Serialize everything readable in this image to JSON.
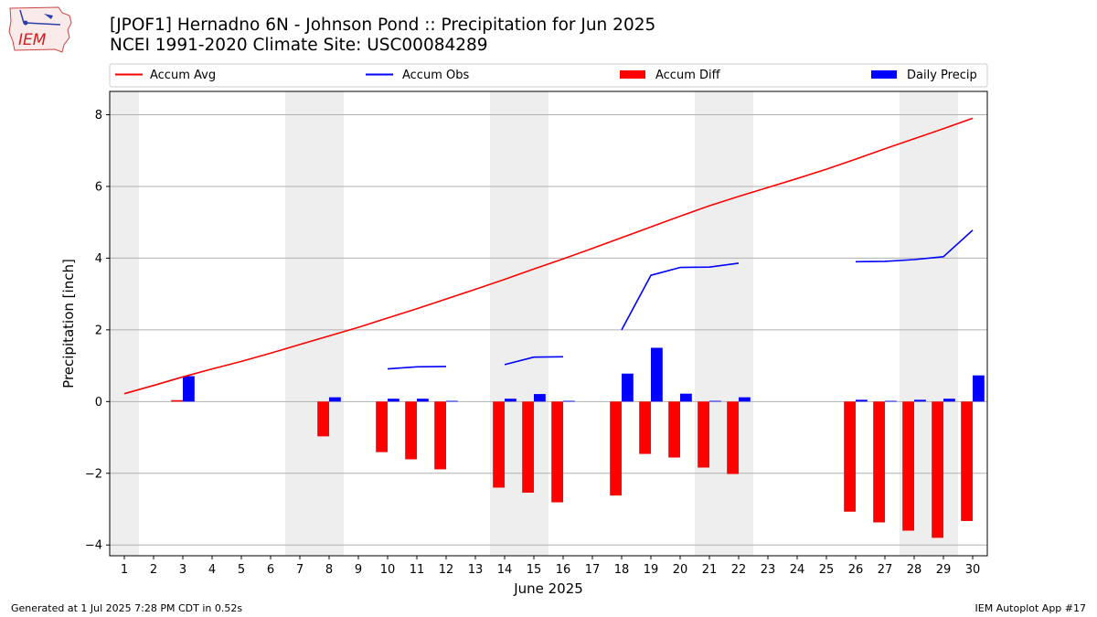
{
  "header": {
    "title_line1": "[JPOF1] Hernadno 6N - Johnson Pond :: Precipitation for Jun 2025",
    "title_line2": "NCEI 1991-2020 Climate Site: USC00084289",
    "logo_text": "IEM"
  },
  "footer": {
    "generated": "Generated at 1 Jul 2025 7:28 PM CDT in 0.52s",
    "app": "IEM Autoplot App #17"
  },
  "chart_data": {
    "type": "bar",
    "xlabel": "June 2025",
    "ylabel": "Precipitation [inch]",
    "xlim": [
      0.5,
      30.5
    ],
    "ylim": [
      -4.3,
      8.65
    ],
    "x_ticks": [
      1,
      2,
      3,
      4,
      5,
      6,
      7,
      8,
      9,
      10,
      11,
      12,
      13,
      14,
      15,
      16,
      17,
      18,
      19,
      20,
      21,
      22,
      23,
      24,
      25,
      26,
      27,
      28,
      29,
      30
    ],
    "y_ticks": [
      -4,
      -2,
      0,
      2,
      4,
      6,
      8
    ],
    "grid": "y",
    "legend_placement": "top",
    "weekend_shading": [
      [
        0.5,
        1.5
      ],
      [
        6.5,
        8.5
      ],
      [
        13.5,
        15.5
      ],
      [
        20.5,
        22.5
      ],
      [
        27.5,
        29.5
      ]
    ],
    "series": [
      {
        "name": "Accum Avg",
        "kind": "line",
        "color": "#ff0000",
        "x": [
          1,
          2,
          3,
          4,
          5,
          6,
          7,
          8,
          9,
          10,
          11,
          12,
          13,
          14,
          15,
          16,
          17,
          18,
          19,
          20,
          21,
          22,
          23,
          24,
          25,
          26,
          27,
          28,
          29,
          30
        ],
        "values": [
          0.22,
          0.45,
          0.69,
          0.91,
          1.12,
          1.35,
          1.59,
          1.83,
          2.07,
          2.33,
          2.59,
          2.86,
          3.13,
          3.41,
          3.7,
          3.98,
          4.27,
          4.57,
          4.87,
          5.17,
          5.46,
          5.72,
          5.97,
          6.22,
          6.48,
          6.76,
          7.05,
          7.33,
          7.61,
          7.9
        ]
      },
      {
        "name": "Accum Obs",
        "kind": "line",
        "color": "#0000ff",
        "x": [
          1,
          2,
          3,
          4,
          5,
          6,
          7,
          8,
          9,
          10,
          11,
          12,
          13,
          14,
          15,
          16,
          17,
          18,
          19,
          20,
          21,
          22,
          23,
          24,
          25,
          26,
          27,
          28,
          29,
          30
        ],
        "values": [
          null,
          null,
          null,
          null,
          null,
          null,
          null,
          null,
          null,
          0.91,
          0.97,
          0.98,
          null,
          1.03,
          1.24,
          1.25,
          null,
          2.0,
          3.52,
          3.74,
          3.75,
          3.86,
          null,
          null,
          null,
          3.9,
          3.91,
          3.96,
          4.04,
          4.78
        ]
      },
      {
        "name": "Accum Diff",
        "kind": "bar",
        "color": "#ff0000",
        "x": [
          1,
          2,
          3,
          4,
          5,
          6,
          7,
          8,
          9,
          10,
          11,
          12,
          13,
          14,
          15,
          16,
          17,
          18,
          19,
          20,
          21,
          22,
          23,
          24,
          25,
          26,
          27,
          28,
          29,
          30
        ],
        "values": [
          null,
          null,
          0.04,
          null,
          null,
          null,
          null,
          -0.97,
          null,
          -1.41,
          -1.61,
          -1.89,
          null,
          -2.4,
          -2.54,
          -2.81,
          null,
          -2.62,
          -1.46,
          -1.56,
          -1.84,
          -2.02,
          null,
          null,
          null,
          -3.07,
          -3.37,
          -3.6,
          -3.8,
          -3.33
        ]
      },
      {
        "name": "Daily Precip",
        "kind": "bar",
        "color": "#0000ff",
        "x": [
          1,
          2,
          3,
          4,
          5,
          6,
          7,
          8,
          9,
          10,
          11,
          12,
          13,
          14,
          15,
          16,
          17,
          18,
          19,
          20,
          21,
          22,
          23,
          24,
          25,
          26,
          27,
          28,
          29,
          30
        ],
        "values": [
          null,
          null,
          0.71,
          null,
          null,
          null,
          null,
          0.12,
          null,
          0.08,
          0.08,
          0.02,
          null,
          0.08,
          0.21,
          0.02,
          null,
          0.78,
          1.5,
          0.22,
          0.02,
          0.12,
          null,
          null,
          null,
          0.05,
          0.02,
          0.05,
          0.08,
          0.73
        ]
      }
    ]
  }
}
